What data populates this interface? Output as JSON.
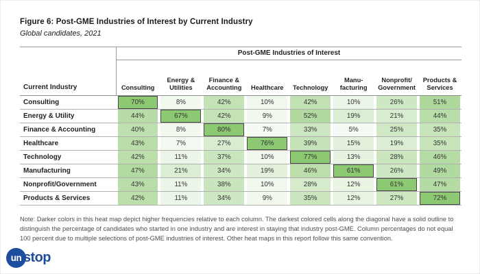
{
  "figure": {
    "title": "Figure 6: Post-GME Industries of Interest by Current Industry",
    "subtitle": "Global candidates, 2021",
    "note": "Note: Darker colors in this heat map depict higher frequencies relative to each column. The darkest colored cells along the diagonal have a solid outline to distinguish the percentage of candidates who started in one industry and are interest in staying that industry post-GME. Column percentages do not equal 100 percent due to multiple selections of post-GME industries of interest. Other heat maps in this report follow this same convention."
  },
  "chart_data": {
    "type": "heatmap",
    "title": "Figure 6: Post-GME Industries of Interest by Current Industry",
    "subtitle": "Global candidates, 2021",
    "group_header": "Post-GME Industries of Interest",
    "row_header_label": "Current Industry",
    "columns": [
      "Consulting",
      "Energy &\nUtilities",
      "Finance &\nAccounting",
      "Healthcare",
      "Technology",
      "Manu-\nfacturing",
      "Nonprofit/\nGovernment",
      "Products &\nServices"
    ],
    "rows": [
      "Consulting",
      "Energy & Utility",
      "Finance & Accounting",
      "Healthcare",
      "Technology",
      "Manufacturing",
      "Nonprofit/Government",
      "Products & Services"
    ],
    "values": [
      [
        70,
        8,
        42,
        10,
        42,
        10,
        26,
        51
      ],
      [
        44,
        67,
        42,
        9,
        52,
        19,
        21,
        44
      ],
      [
        40,
        8,
        80,
        7,
        33,
        5,
        25,
        35
      ],
      [
        43,
        7,
        27,
        76,
        39,
        15,
        19,
        35
      ],
      [
        42,
        11,
        37,
        10,
        77,
        13,
        28,
        46
      ],
      [
        47,
        21,
        34,
        19,
        46,
        61,
        26,
        49
      ],
      [
        43,
        11,
        38,
        10,
        28,
        12,
        61,
        47
      ],
      [
        42,
        11,
        34,
        9,
        35,
        12,
        27,
        72
      ]
    ],
    "unit": "%",
    "diagonal_outlined": true,
    "colors": {
      "heat_max": "#8dc873",
      "heat_min": "#ffffff",
      "diagonal_outline": "#474747"
    }
  },
  "logo": {
    "circle_text": "un",
    "rest_text": "stop",
    "color": "#1d4d9f"
  }
}
